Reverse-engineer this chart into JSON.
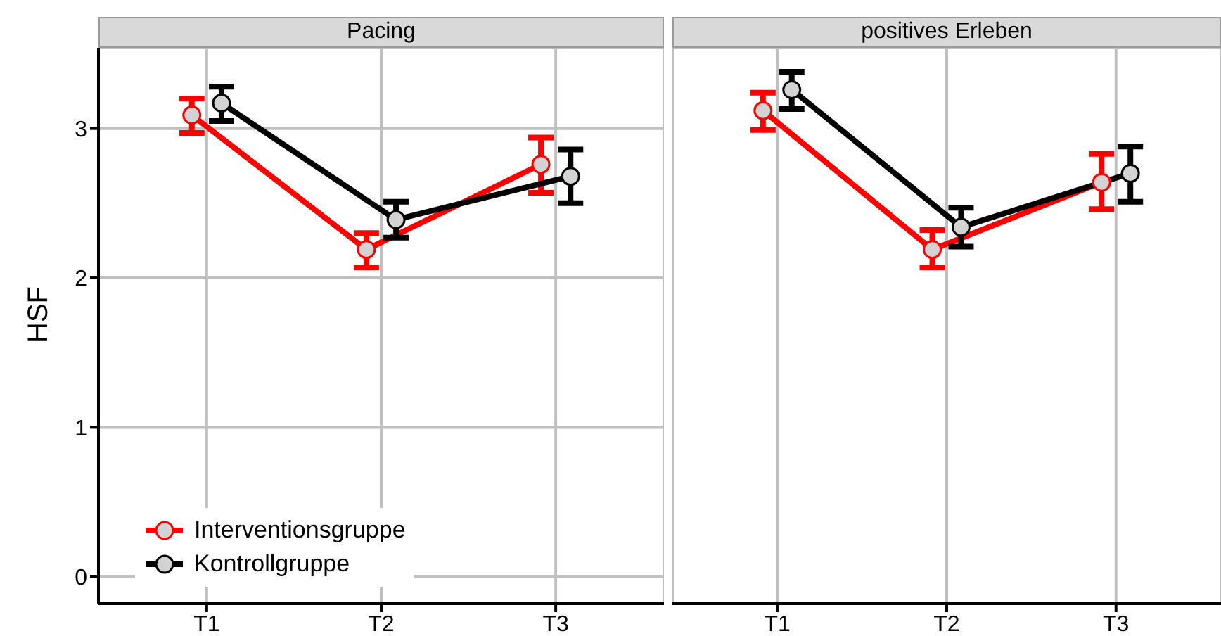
{
  "chart_data": [
    {
      "type": "line",
      "title": "Pacing",
      "ylabel": "HSF",
      "categories": [
        "T1",
        "T2",
        "T3"
      ],
      "ylim": [
        -0.18,
        3.54
      ],
      "yticks": [
        0,
        1,
        2,
        3
      ],
      "grid": true,
      "marker": "circle",
      "legend": "bottom left",
      "series": [
        {
          "name": "Interventionsgruppe",
          "color": "#ff0000",
          "values": [
            3.09,
            2.19,
            2.76
          ],
          "errors": [
            [
              2.97,
              3.2
            ],
            [
              2.07,
              2.3
            ],
            [
              2.57,
              2.94
            ]
          ]
        },
        {
          "name": "Kontrollgruppe",
          "color": "#000000",
          "values": [
            3.17,
            2.39,
            2.68
          ],
          "errors": [
            [
              3.05,
              3.28
            ],
            [
              2.27,
              2.51
            ],
            [
              2.5,
              2.86
            ]
          ]
        }
      ]
    },
    {
      "type": "line",
      "title": "positives Erleben",
      "categories": [
        "T1",
        "T2",
        "T3"
      ],
      "ylim": [
        -0.18,
        3.54
      ],
      "yticks": [
        0,
        1,
        2,
        3
      ],
      "grid": true,
      "marker": "circle",
      "tick_labels": "x",
      "series": [
        {
          "color": "#ff0000",
          "values": [
            3.12,
            2.19,
            2.64
          ],
          "errors": [
            [
              2.99,
              3.24
            ],
            [
              2.07,
              2.32
            ],
            [
              2.46,
              2.83
            ]
          ]
        },
        {
          "color": "#000000",
          "values": [
            3.26,
            2.34,
            2.7
          ],
          "errors": [
            [
              3.13,
              3.38
            ],
            [
              2.21,
              2.47
            ],
            [
              2.51,
              2.88
            ]
          ]
        }
      ]
    }
  ]
}
